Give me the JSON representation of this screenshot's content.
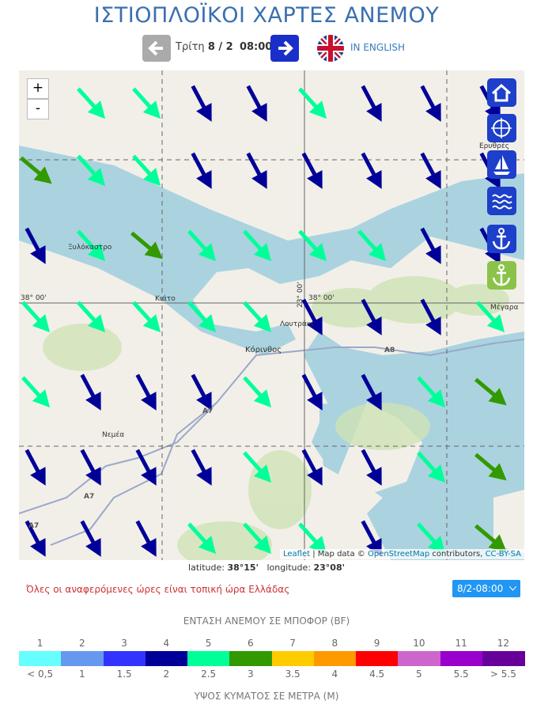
{
  "header": {
    "title": "ΙΣΤΙΟΠΛΟΪΚΟΙ ΧΑΡΤΕΣ ΑΝΕΜΟΥ",
    "day": "Τρίτη",
    "date": "8 / 2",
    "time": "08:00",
    "language_link": "IN ENGLISH"
  },
  "map": {
    "zoom_in": "+",
    "zoom_out": "-",
    "places": [
      "Ερυθρές",
      "Ξυλόκαστρο",
      "Κιάτο",
      "Κόρινθος",
      "Λουτράκι",
      "Νεμέα",
      "Μέγαρα"
    ],
    "coord_labels": [
      "38° 00'",
      "38° 00'",
      "23° 00'"
    ],
    "roads": [
      "A8",
      "A7",
      "A7",
      "A7"
    ],
    "attribution": {
      "leaflet": "Leaflet",
      "text1": "| Map data ©",
      "osm": "OpenStreetMap",
      "text2": "contributors,",
      "license": "CC-BY-SA"
    },
    "wind_arrows": [
      [
        null,
        5,
        5,
        4,
        4,
        5,
        4,
        4,
        4
      ],
      [
        6,
        5,
        5,
        4,
        4,
        4,
        4,
        4,
        4
      ],
      [
        4,
        5,
        6,
        5,
        5,
        5,
        5,
        4,
        4
      ],
      [
        5,
        5,
        5,
        5,
        5,
        4,
        4,
        4,
        5
      ],
      [
        5,
        4,
        4,
        4,
        5,
        4,
        4,
        5,
        6
      ],
      [
        4,
        4,
        4,
        4,
        5,
        4,
        4,
        5,
        6
      ],
      [
        4,
        4,
        4,
        5,
        5,
        5,
        4,
        5,
        6
      ]
    ]
  },
  "position": {
    "latitude_label": "latitude:",
    "latitude": "38°15'",
    "longitude_label": "longitude:",
    "longitude": "23°08'"
  },
  "note": "Όλες οι αναφερόμενες ώρες είναι τοπική ώρα Ελλάδας",
  "time_select": "8/2-08:00",
  "legend": {
    "title": "ΕΝΤΑΣΗ ΑΝΕΜΟΥ ΣΕ ΜΠΟΦΟΡ (BF)",
    "wave_title": "ΥΨΟΣ ΚΥΜΑΤΟΣ ΣΕ ΜΕΤΡΑ (M)",
    "levels": [
      {
        "bf": 1,
        "color": "#66ffff",
        "wave": "< 0,5"
      },
      {
        "bf": 2,
        "color": "#6699ee",
        "wave": "1"
      },
      {
        "bf": 3,
        "color": "#3333ff",
        "wave": "1.5"
      },
      {
        "bf": 4,
        "color": "#000099",
        "wave": "2"
      },
      {
        "bf": 5,
        "color": "#00ff99",
        "wave": "2.5"
      },
      {
        "bf": 6,
        "color": "#339900",
        "wave": "3"
      },
      {
        "bf": 7,
        "color": "#ffcc00",
        "wave": "3.5"
      },
      {
        "bf": 8,
        "color": "#ff9900",
        "wave": "4"
      },
      {
        "bf": 9,
        "color": "#ff0000",
        "wave": "4.5"
      },
      {
        "bf": 10,
        "color": "#cc66cc",
        "wave": "5"
      },
      {
        "bf": 11,
        "color": "#9900cc",
        "wave": "5.5"
      },
      {
        "bf": 12,
        "color": "#660099",
        "wave": "> 5.5"
      }
    ]
  }
}
